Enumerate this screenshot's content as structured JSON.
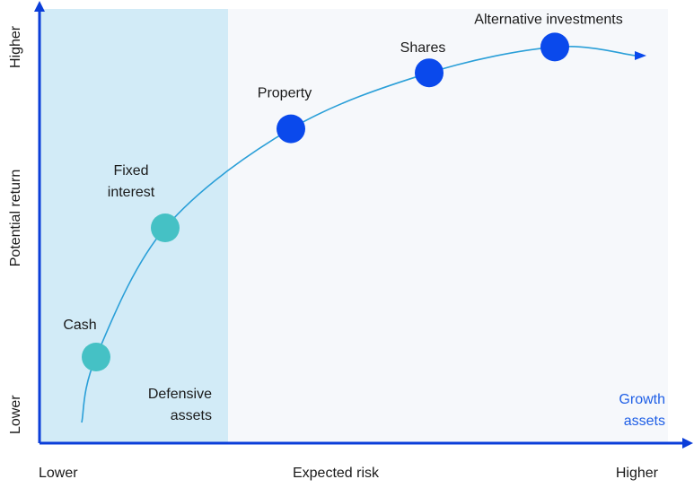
{
  "chart_data": {
    "type": "scatter",
    "xlabel": "Expected risk",
    "ylabel": "Potential return",
    "x_ticks": {
      "low": "Lower",
      "high": "Higher"
    },
    "y_ticks": {
      "low": "Lower",
      "high": "Higher"
    },
    "xlim": [
      0,
      10
    ],
    "ylim": [
      0,
      10
    ],
    "points": [
      {
        "name": "Cash",
        "x": 0.9,
        "y": 2.0,
        "group": "defensive"
      },
      {
        "name": "Fixed interest",
        "x": 2.0,
        "y": 5.0,
        "group": "defensive"
      },
      {
        "name": "Property",
        "x": 4.0,
        "y": 7.3,
        "group": "growth"
      },
      {
        "name": "Shares",
        "x": 6.2,
        "y": 8.6,
        "group": "growth"
      },
      {
        "name": "Alternative investments",
        "x": 8.2,
        "y": 9.2,
        "group": "growth"
      }
    ],
    "regions": [
      {
        "name": "defensive",
        "label": "Defensive assets",
        "x_start": 0,
        "x_end": 3.0,
        "color": "#d2ebf7"
      },
      {
        "name": "growth",
        "label": "Growth assets",
        "x_start": 3.0,
        "x_end": 10,
        "color": "#f6f8fb"
      }
    ],
    "colors": {
      "axis": "#0b3ed9",
      "curve": "#2a9fd8",
      "defensive_point": "#45c1c5",
      "growth_point": "#0a49ec",
      "growth_label": "#1f5fe6"
    }
  }
}
